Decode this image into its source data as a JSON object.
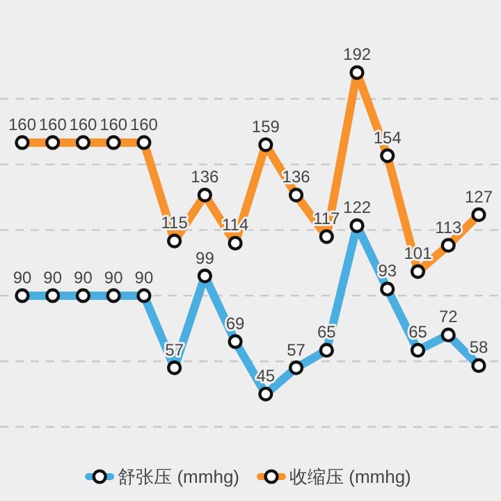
{
  "chart_data": {
    "type": "line",
    "categories": [
      null,
      null,
      null,
      null,
      null,
      null,
      null,
      null,
      null,
      null,
      null,
      null,
      null,
      null,
      null,
      null
    ],
    "series": [
      {
        "name": "舒张压 (mmhg)",
        "color": "#4aaee0",
        "values": [
          90,
          90,
          90,
          90,
          90,
          57,
          99,
          69,
          45,
          57,
          65,
          122,
          93,
          65,
          72,
          58
        ]
      },
      {
        "name": "收缩压 (mmhg)",
        "color": "#f7932f",
        "values": [
          160,
          160,
          160,
          160,
          160,
          115,
          136,
          114,
          159,
          136,
          117,
          192,
          154,
          101,
          113,
          127
        ]
      }
    ],
    "yticks": [
      {
        "value": 30,
        "label": null
      },
      {
        "value": 60,
        "label": null
      },
      {
        "value": 90,
        "label": null
      },
      {
        "value": 120,
        "label": null
      },
      {
        "value": 150,
        "label": null
      },
      {
        "value": 180,
        "label": null
      }
    ],
    "grid": "y",
    "legend": "bottom",
    "marker": "circle",
    "data_labels": true
  }
}
